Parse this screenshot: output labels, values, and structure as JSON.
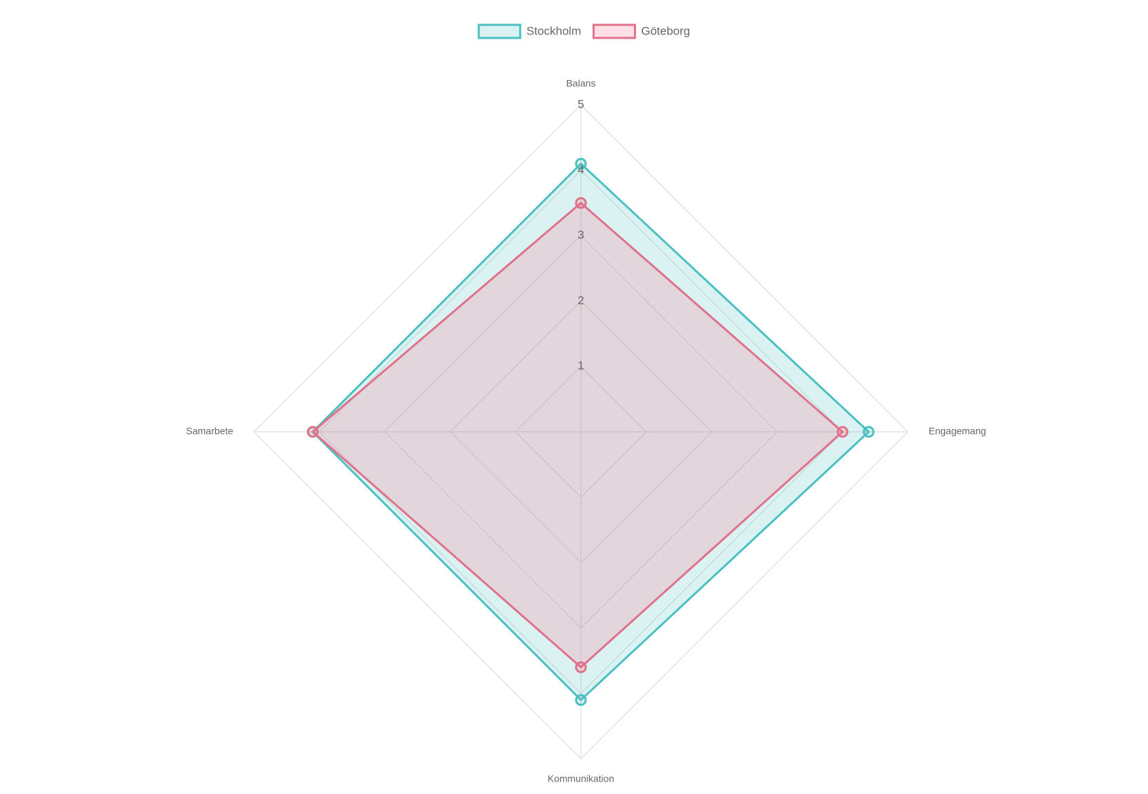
{
  "chart_data": {
    "type": "radar",
    "categories": [
      "Balans",
      "Engagemang",
      "Kommunikation",
      "Samarbete"
    ],
    "series": [
      {
        "name": "Stockholm",
        "color": "#4bc0c0",
        "fill": "rgba(75,192,192,0.2)",
        "values": [
          4.1,
          4.4,
          4.1,
          4.1
        ]
      },
      {
        "name": "Göteborg",
        "color": "#e0718a",
        "fill": "rgba(255,99,132,0.2)",
        "values": [
          3.5,
          4.0,
          3.6,
          4.1
        ]
      }
    ],
    "rlim": [
      0,
      5
    ],
    "rticks": [
      1,
      2,
      3,
      4,
      5
    ],
    "grid": true,
    "legend": "top"
  }
}
